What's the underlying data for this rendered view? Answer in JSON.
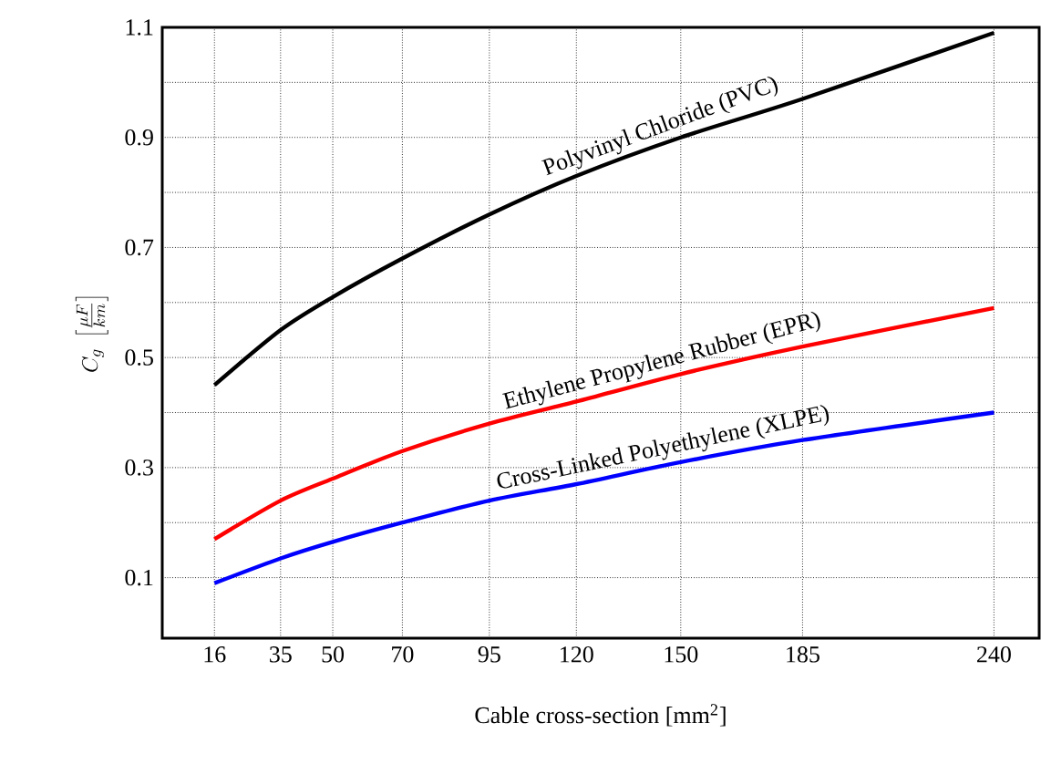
{
  "chart_data": {
    "type": "line",
    "xlabel": "Cable cross-section [mm$^{2}$]",
    "ylabel": "C_g \\; \\left[\\frac{\\mu F}{km}\\right]",
    "x": [
      16,
      35,
      50,
      70,
      95,
      120,
      150,
      185,
      240
    ],
    "series": [
      {
        "name": "Polyvinyl Chloride (PVC)",
        "color": "#000000",
        "values": [
          0.45,
          0.55,
          0.61,
          0.68,
          0.76,
          0.83,
          0.9,
          0.97,
          1.09
        ]
      },
      {
        "name": "Ethylene Propylene Rubber (EPR)",
        "color": "#ff0000",
        "values": [
          0.17,
          0.24,
          0.28,
          0.33,
          0.38,
          0.42,
          0.47,
          0.52,
          0.59
        ]
      },
      {
        "name": "Cross-Linked Polyethylene (XLPE)",
        "color": "#0000ff",
        "values": [
          0.09,
          0.135,
          0.165,
          0.2,
          0.24,
          0.27,
          0.31,
          0.35,
          0.4
        ]
      }
    ],
    "xlim": [
      1,
      253
    ],
    "ylim": [
      -0.01,
      1.1
    ],
    "xticks": [
      16,
      35,
      50,
      70,
      95,
      120,
      150,
      185,
      240
    ],
    "yticks": [
      0.1,
      {
        "value": 0.2,
        "label": null
      },
      0.3,
      {
        "value": 0.4,
        "label": null
      },
      0.5,
      {
        "value": 0.6,
        "label": null
      },
      0.7,
      {
        "value": 0.8,
        "label": null
      },
      0.9,
      {
        "value": 1.0,
        "label": null
      },
      1.1
    ],
    "grid": true,
    "marker": "none",
    "line_style": "solid"
  }
}
